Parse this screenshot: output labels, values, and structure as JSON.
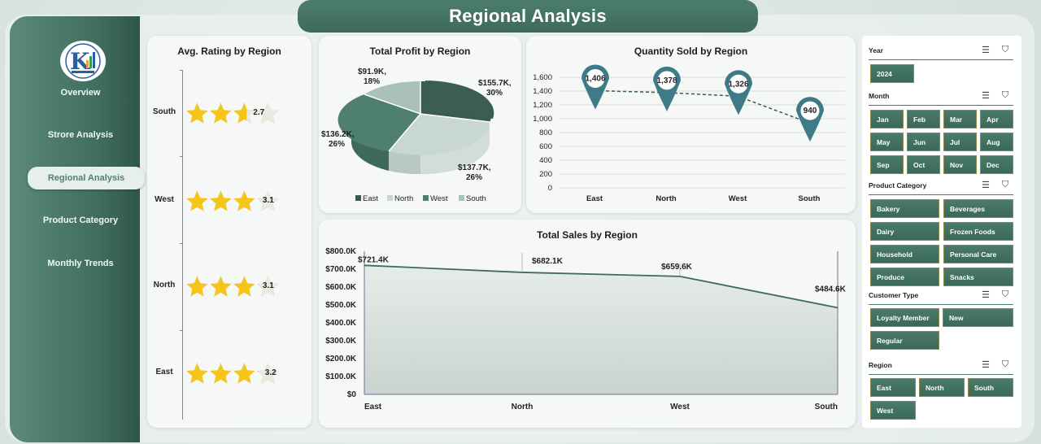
{
  "page": {
    "title": "Regional Analysis",
    "colors": {
      "accent": "#3f6c5d",
      "star": "#f5c518",
      "line": "#3d6b5c"
    }
  },
  "sidebar": {
    "logo_icon": "company-logo",
    "items": [
      {
        "label": "Overview"
      },
      {
        "label": "Strore Analysis"
      },
      {
        "label": "Regional Analysis",
        "active": true
      },
      {
        "label": "Product Category"
      },
      {
        "label": "Monthly Trends"
      }
    ]
  },
  "rating_card": {
    "title": "Avg. Rating by Region",
    "rows": [
      {
        "region": "South",
        "value": "2.7",
        "rating": 2.7,
        "max": 4
      },
      {
        "region": "West",
        "value": "3.1",
        "rating": 3.1,
        "max": 4
      },
      {
        "region": "North",
        "value": "3.1",
        "rating": 3.1,
        "max": 4
      },
      {
        "region": "East",
        "value": "3.2",
        "rating": 3.2,
        "max": 4
      }
    ]
  },
  "profit_card": {
    "title": "Total Profit by Region",
    "labels": [
      {
        "text1": "$155.7K,",
        "text2": "30%"
      },
      {
        "text1": "$137.7K,",
        "text2": "26%"
      },
      {
        "text1": "$136.2K,",
        "text2": "26%"
      },
      {
        "text1": "$91.9K,",
        "text2": "18%"
      }
    ],
    "legend": [
      "East",
      "North",
      "West",
      "South"
    ]
  },
  "quantity_card": {
    "title": "Quantity Sold by Region",
    "y_ticks": [
      "1,600",
      "1,400",
      "1,200",
      "1,000",
      "800",
      "600",
      "400",
      "200",
      "0"
    ],
    "categories": [
      "East",
      "North",
      "West",
      "South"
    ],
    "value_labels": [
      "1,406",
      "1,378",
      "1,326",
      "940"
    ]
  },
  "sales_card": {
    "title": "Total Sales by Region",
    "y_ticks": [
      "$800.0K",
      "$700.0K",
      "$600.0K",
      "$500.0K",
      "$400.0K",
      "$300.0K",
      "$200.0K",
      "$100.0K",
      "$0"
    ],
    "categories": [
      "East",
      "North",
      "West",
      "South"
    ],
    "value_labels": [
      "$721.4K",
      "$682.1K",
      "$659.6K",
      "$484.6K"
    ]
  },
  "chart_data": [
    {
      "type": "table",
      "title": "Avg. Rating by Region",
      "categories": [
        "South",
        "West",
        "North",
        "East"
      ],
      "values": [
        2.7,
        3.1,
        3.1,
        3.2
      ]
    },
    {
      "type": "pie",
      "title": "Total Profit by Region",
      "categories": [
        "East",
        "North",
        "West",
        "South"
      ],
      "values": [
        155.7,
        137.7,
        136.2,
        91.9
      ],
      "percent": [
        30,
        26,
        26,
        18
      ],
      "unit": "$K",
      "legend": "bottom"
    },
    {
      "type": "line",
      "title": "Quantity Sold by Region",
      "categories": [
        "East",
        "North",
        "West",
        "South"
      ],
      "values": [
        1406,
        1378,
        1326,
        940
      ],
      "ylim": [
        0,
        1600
      ],
      "grid": true
    },
    {
      "type": "area",
      "title": "Total Sales by Region",
      "categories": [
        "East",
        "North",
        "West",
        "South"
      ],
      "values": [
        721.4,
        682.1,
        659.6,
        484.6
      ],
      "unit": "$K",
      "ylim": [
        0,
        800
      ]
    }
  ],
  "slicers": {
    "year": {
      "label": "Year",
      "options": [
        "2024"
      ]
    },
    "month": {
      "label": "Month",
      "options": [
        "Jan",
        "Feb",
        "Mar",
        "Apr",
        "May",
        "Jun",
        "Jul",
        "Aug",
        "Sep",
        "Oct",
        "Nov",
        "Dec"
      ]
    },
    "category": {
      "label": "Product Category",
      "options": [
        "Bakery",
        "Beverages",
        "Dairy",
        "Frozen Foods",
        "Household",
        "Personal Care",
        "Produce",
        "Snacks"
      ]
    },
    "customer": {
      "label": "Customer Type",
      "options": [
        "Loyalty Member",
        "New",
        "Regular"
      ]
    },
    "region": {
      "label": "Region",
      "options": [
        "East",
        "North",
        "South",
        "West"
      ]
    }
  }
}
